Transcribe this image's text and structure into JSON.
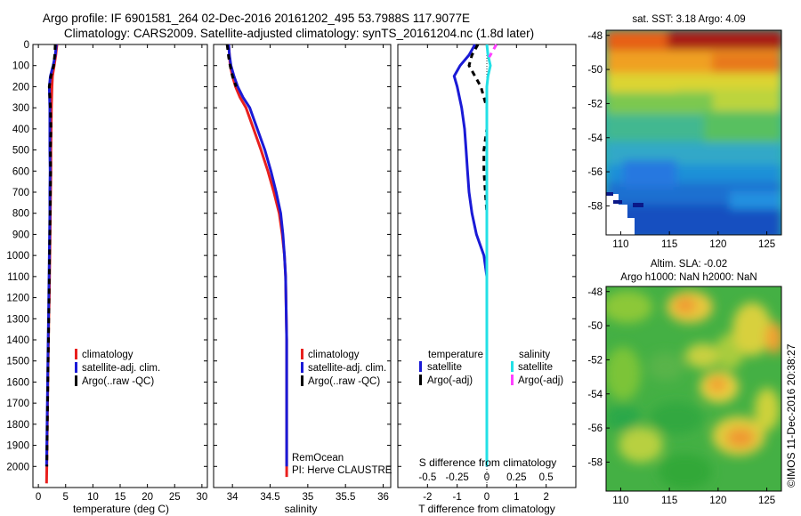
{
  "header": {
    "line1": "Argo profile: IF 6901581_264 02-Dec-2016 20161202_495 53.7988S 117.9077E",
    "line2": "Climatology: CARS2009. Satellite-adjusted climatology: synTS_20161204.nc (1.8d later)"
  },
  "colors": {
    "climatology": "#e8201e",
    "satellite": "#1a1ad6",
    "argo": "#000000",
    "satellite_salinity": "#22e0e6",
    "argo_adj_salinity": "#ff40ff"
  },
  "chart_data": [
    {
      "type": "line",
      "id": "temperature",
      "xlabel": "temperature (deg C)",
      "xlim": [
        -1,
        31
      ],
      "ylim": [
        2100,
        0
      ],
      "xticks": [
        0,
        5,
        10,
        15,
        20,
        25,
        30
      ],
      "yticks": [
        0,
        100,
        200,
        300,
        400,
        500,
        600,
        700,
        800,
        900,
        1000,
        1100,
        1200,
        1300,
        1400,
        1500,
        1600,
        1700,
        1800,
        1900,
        2000
      ],
      "legend": [
        "climatology",
        "satellite-adj. clim.",
        "Argo(..raw -QC)"
      ],
      "series": [
        {
          "name": "climatology",
          "x": [
            3.4,
            3.2,
            2.9,
            2.6,
            2.5,
            2.4,
            2.35,
            2.3,
            2.3,
            2.25,
            2.2,
            2.15,
            2.1,
            2.05,
            2.0,
            1.9,
            1.85,
            1.8,
            1.75,
            1.7,
            1.65,
            1.6,
            1.55,
            1.5
          ],
          "y": [
            0,
            50,
            100,
            150,
            200,
            300,
            400,
            500,
            600,
            700,
            800,
            900,
            1000,
            1100,
            1200,
            1300,
            1400,
            1500,
            1600,
            1700,
            1800,
            1900,
            2000,
            2080
          ]
        },
        {
          "name": "satellite-adj. clim.",
          "x": [
            3.3,
            3.1,
            2.7,
            2.2,
            2.0,
            2.1,
            2.1,
            2.1,
            2.15,
            2.1,
            2.1,
            2.05,
            2.0,
            1.95,
            1.9,
            1.85,
            1.8,
            1.75,
            1.7,
            1.65,
            1.6,
            1.55,
            1.5
          ],
          "y": [
            0,
            50,
            100,
            150,
            200,
            300,
            400,
            500,
            600,
            700,
            800,
            900,
            1000,
            1100,
            1200,
            1300,
            1400,
            1500,
            1600,
            1700,
            1800,
            1900,
            2000
          ]
        },
        {
          "name": "Argo(..raw -QC)",
          "x": [
            3.1,
            3.0,
            2.8,
            2.3,
            2.0,
            2.2,
            2.3,
            2.2,
            2.25,
            2.2,
            2.15,
            2.1,
            2.05,
            2.0,
            1.95,
            1.9,
            1.85,
            1.8,
            1.75,
            1.7,
            1.65,
            1.6,
            1.55
          ],
          "y": [
            0,
            50,
            100,
            150,
            200,
            300,
            400,
            500,
            600,
            700,
            800,
            900,
            1000,
            1100,
            1200,
            1300,
            1400,
            1500,
            1600,
            1700,
            1800,
            1900,
            2000
          ]
        }
      ]
    },
    {
      "type": "line",
      "id": "salinity",
      "xlabel": "salinity",
      "xlim": [
        33.75,
        36.1
      ],
      "ylim": [
        2100,
        0
      ],
      "xticks": [
        34,
        34.5,
        35,
        35.5,
        36
      ],
      "legend": [
        "climatology",
        "satellite-adj. clim.",
        "Argo(..raw -QC)"
      ],
      "annotation": [
        "RemOcean",
        "PI: Herve CLAUSTRE"
      ],
      "series": [
        {
          "name": "climatology",
          "x": [
            33.95,
            33.96,
            33.97,
            34.0,
            34.04,
            34.1,
            34.18,
            34.28,
            34.38,
            34.47,
            34.55,
            34.62,
            34.66,
            34.69,
            34.705,
            34.71,
            34.715,
            34.72,
            34.72,
            34.72,
            34.72,
            34.72,
            34.72,
            34.72
          ],
          "y": [
            0,
            50,
            100,
            150,
            200,
            250,
            300,
            400,
            500,
            600,
            700,
            800,
            900,
            1000,
            1100,
            1200,
            1300,
            1400,
            1500,
            1600,
            1700,
            1800,
            1900,
            2050
          ]
        },
        {
          "name": "satellite-adj. clim.",
          "x": [
            33.95,
            33.96,
            33.98,
            34.02,
            34.07,
            34.14,
            34.23,
            34.33,
            34.43,
            34.51,
            34.58,
            34.64,
            34.67,
            34.69,
            34.705,
            34.71,
            34.715,
            34.72,
            34.72,
            34.72,
            34.72,
            34.72,
            34.72,
            34.72
          ],
          "y": [
            0,
            50,
            100,
            150,
            200,
            250,
            300,
            400,
            500,
            600,
            700,
            800,
            900,
            1000,
            1100,
            1200,
            1300,
            1400,
            1500,
            1600,
            1700,
            1800,
            1900,
            2000
          ]
        },
        {
          "name": "Argo(..raw -QC)",
          "x": [
            33.93,
            33.94,
            33.95,
            33.97,
            34.0,
            34.05
          ],
          "y": [
            0,
            30,
            60,
            100,
            150,
            200
          ]
        }
      ]
    },
    {
      "type": "line",
      "id": "differences",
      "xlabel": "T difference from climatology",
      "x2label": "S difference from climatology",
      "xlim": [
        -3,
        3
      ],
      "x2lim": [
        -0.75,
        0.75
      ],
      "ylim": [
        2100,
        0
      ],
      "xticks": [
        -2,
        -1,
        0,
        1,
        2
      ],
      "x2ticks": [
        -0.5,
        -0.25,
        0,
        0.25,
        0.5
      ],
      "legend": {
        "temperature": [
          "satellite",
          "Argo(-adj)"
        ],
        "salinity": [
          "satellite",
          "Argo(-adj)"
        ]
      },
      "series": [
        {
          "name": "temperature satellite",
          "x": [
            -0.4,
            -0.6,
            -0.9,
            -1.1,
            -1.0,
            -0.85,
            -0.75,
            -0.7,
            -0.65,
            -0.6,
            -0.5,
            -0.35,
            -0.1,
            0.0,
            0.0,
            0.0,
            0.0,
            0.0,
            0.0,
            0.0,
            0.0,
            0.0,
            0.0
          ],
          "y": [
            0,
            50,
            100,
            150,
            200,
            300,
            400,
            500,
            600,
            700,
            800,
            900,
            1000,
            1100,
            1200,
            1300,
            1400,
            1500,
            1600,
            1700,
            1800,
            1900,
            2000
          ]
        },
        {
          "name": "temperature Argo(-adj)",
          "x": [
            -0.3,
            -0.5,
            -0.6,
            -0.4,
            -0.2,
            0.0,
            0.0,
            -0.1,
            -0.1,
            -0.05,
            0.0,
            0.0
          ],
          "y": [
            0,
            50,
            100,
            150,
            200,
            300,
            400,
            500,
            600,
            700,
            800,
            900
          ]
        },
        {
          "name": "salinity satellite",
          "x": [
            0.0,
            0.01,
            0.03,
            0.01,
            0.0,
            0.0,
            0.0,
            0.0,
            0.0,
            0.0,
            0.0,
            0.0,
            0.0,
            0.0,
            0.0,
            0.0,
            0.0,
            0.0,
            0.0,
            0.0,
            0.0
          ],
          "y": [
            0,
            50,
            100,
            150,
            200,
            300,
            400,
            500,
            600,
            700,
            800,
            900,
            1000,
            1100,
            1200,
            1300,
            1400,
            1500,
            1600,
            1700,
            2000
          ]
        },
        {
          "name": "salinity Argo(-adj)",
          "x": [
            0.08,
            0.05,
            0.02
          ],
          "y": [
            0,
            30,
            60
          ]
        }
      ]
    },
    {
      "type": "heatmap",
      "id": "sst-map",
      "title": "sat. SST: 3.18 Argo: 4.09",
      "xlim": [
        108.5,
        126.5
      ],
      "ylim": [
        -59.7,
        -47.7
      ],
      "xticks": [
        110,
        115,
        120,
        125
      ],
      "yticks": [
        -48,
        -50,
        -52,
        -54,
        -56,
        -58
      ],
      "float_position": {
        "lon": 117.9077,
        "lat": -53.7988
      }
    },
    {
      "type": "heatmap",
      "id": "sla-map",
      "title": [
        "Altim. SLA: -0.02",
        "Argo h1000: NaN h2000: NaN"
      ],
      "xlim": [
        108.5,
        126.5
      ],
      "ylim": [
        -59.7,
        -47.7
      ],
      "xticks": [
        110,
        115,
        120,
        125
      ],
      "yticks": [
        -48,
        -50,
        -52,
        -54,
        -56,
        -58
      ],
      "float_position": {
        "lon": 117.9077,
        "lat": -53.7988
      }
    }
  ],
  "credit": "©IMOS 11-Dec-2016 20:38:27"
}
